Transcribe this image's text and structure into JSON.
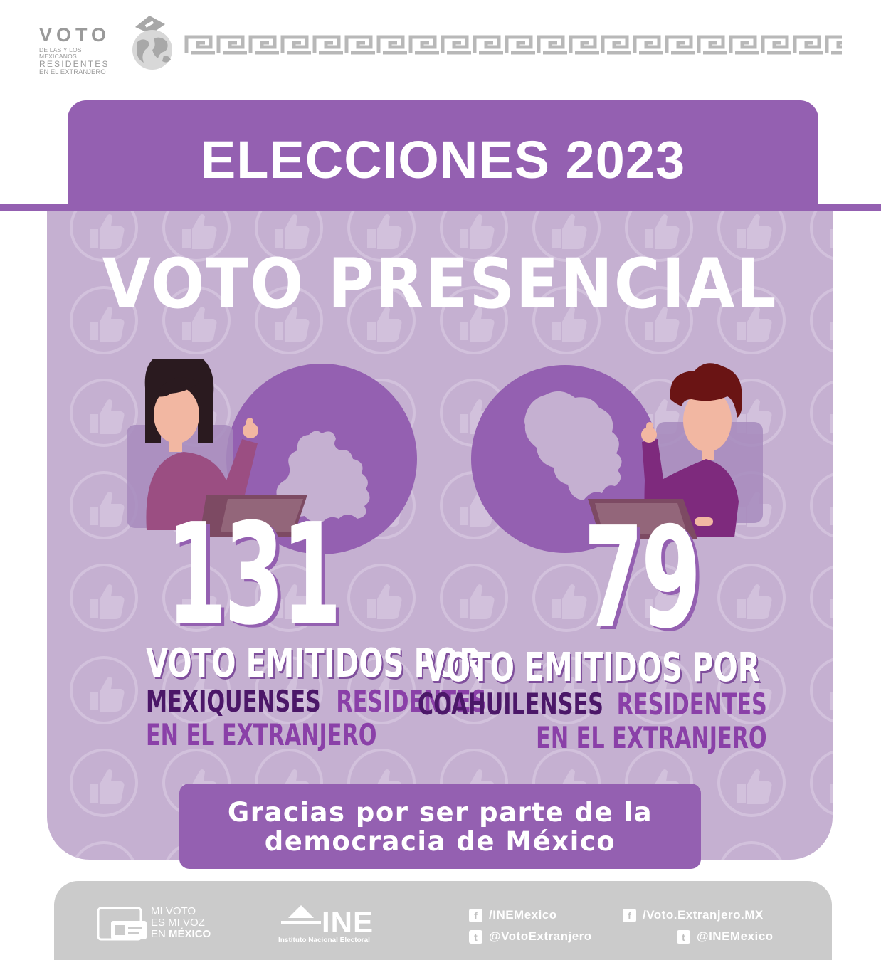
{
  "header": {
    "logo_line1": "VOTO",
    "logo_line2": "DE LAS Y LOS MEXICANOS",
    "logo_line3": "RESIDENTES",
    "logo_line4": "EN EL EXTRANJERO"
  },
  "banner": {
    "title": "ELECCIONES 2023"
  },
  "main": {
    "subtitle": "VOTO PRESENCIAL",
    "left": {
      "number": "131",
      "line1": "VOTO EMITIDOS POR",
      "highlight": "MEXIQUENSES",
      "line2b": "RESIDENTES",
      "line3": "EN EL EXTRANJERO"
    },
    "right": {
      "number": "79",
      "line1": "VOTO EMITIDOS POR",
      "highlight": "COAHUILENSES",
      "line2b": "RESIDENTES",
      "line3": "EN EL EXTRANJERO"
    },
    "thanks_line1": "Gracias por ser parte de la",
    "thanks_line2": "democracia de México"
  },
  "footer": {
    "mivoto_line1": "MI VOTO",
    "mivoto_line2": "ES MI VOZ",
    "mivoto_line3a": "EN ",
    "mivoto_line3b": "MÉXICO",
    "ine_name": "INE",
    "ine_sub": "Instituto Nacional Electoral",
    "social": [
      {
        "icon": "facebook-icon",
        "label": "/INEMexico"
      },
      {
        "icon": "facebook-icon",
        "label": "/Voto.Extranjero.MX"
      },
      {
        "icon": "twitter-icon",
        "label": "@VotoExtranjero"
      },
      {
        "icon": "twitter-icon",
        "label": "@INEMexico"
      }
    ]
  },
  "colors": {
    "purple": "#9460b1",
    "lilac": "#c5b0d1",
    "dark_purple": "#4b1768",
    "medium_purple": "#8a40a8",
    "gray": "#cbcbcb"
  }
}
